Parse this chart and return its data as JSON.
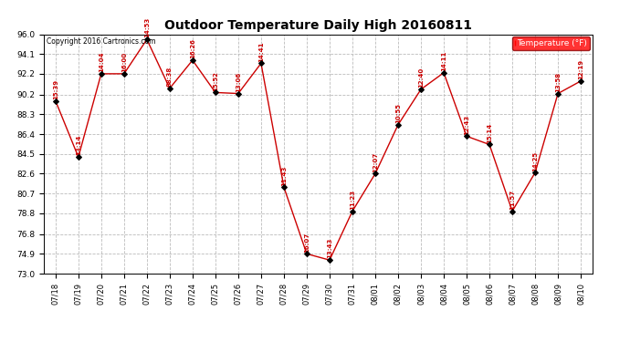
{
  "title": "Outdoor Temperature Daily High 20160811",
  "copyright_text": "Copyright 2016 Cartronics.com",
  "legend_label": "Temperature (°F)",
  "x_labels": [
    "07/18",
    "07/19",
    "07/20",
    "07/21",
    "07/22",
    "07/23",
    "07/24",
    "07/25",
    "07/26",
    "07/27",
    "07/28",
    "07/29",
    "07/30",
    "07/31",
    "08/01",
    "08/02",
    "08/03",
    "08/04",
    "08/05",
    "08/06",
    "08/07",
    "08/08",
    "08/09",
    "08/10"
  ],
  "y_values": [
    89.6,
    84.2,
    92.2,
    92.2,
    95.5,
    90.8,
    93.5,
    90.4,
    90.3,
    93.2,
    81.3,
    74.9,
    74.3,
    79.0,
    82.6,
    87.3,
    90.7,
    92.3,
    86.2,
    85.4,
    79.0,
    82.7,
    90.3,
    91.5
  ],
  "point_labels": [
    "15:39",
    "13:14",
    "14:04",
    "16:00",
    "14:53",
    "08:38",
    "16:26",
    "15:52",
    "13:06",
    "14:41",
    "11:43",
    "16:07",
    "13:43",
    "11:23",
    "12:07",
    "10:55",
    "12:40",
    "14:11",
    "12:43",
    "15:14",
    "11:57",
    "14:25",
    "13:58",
    "12:19"
  ],
  "line_color": "#cc0000",
  "marker_color": "#000000",
  "bg_color": "#ffffff",
  "grid_color": "#bbbbbb",
  "ylim_min": 73.0,
  "ylim_max": 96.0,
  "yticks": [
    73.0,
    74.9,
    76.8,
    78.8,
    80.7,
    82.6,
    84.5,
    86.4,
    88.3,
    90.2,
    92.2,
    94.1,
    96.0
  ],
  "title_fontsize": 10,
  "tick_fontsize": 6,
  "label_fontsize": 5,
  "copyright_fontsize": 5.5,
  "legend_fontsize": 6.5
}
